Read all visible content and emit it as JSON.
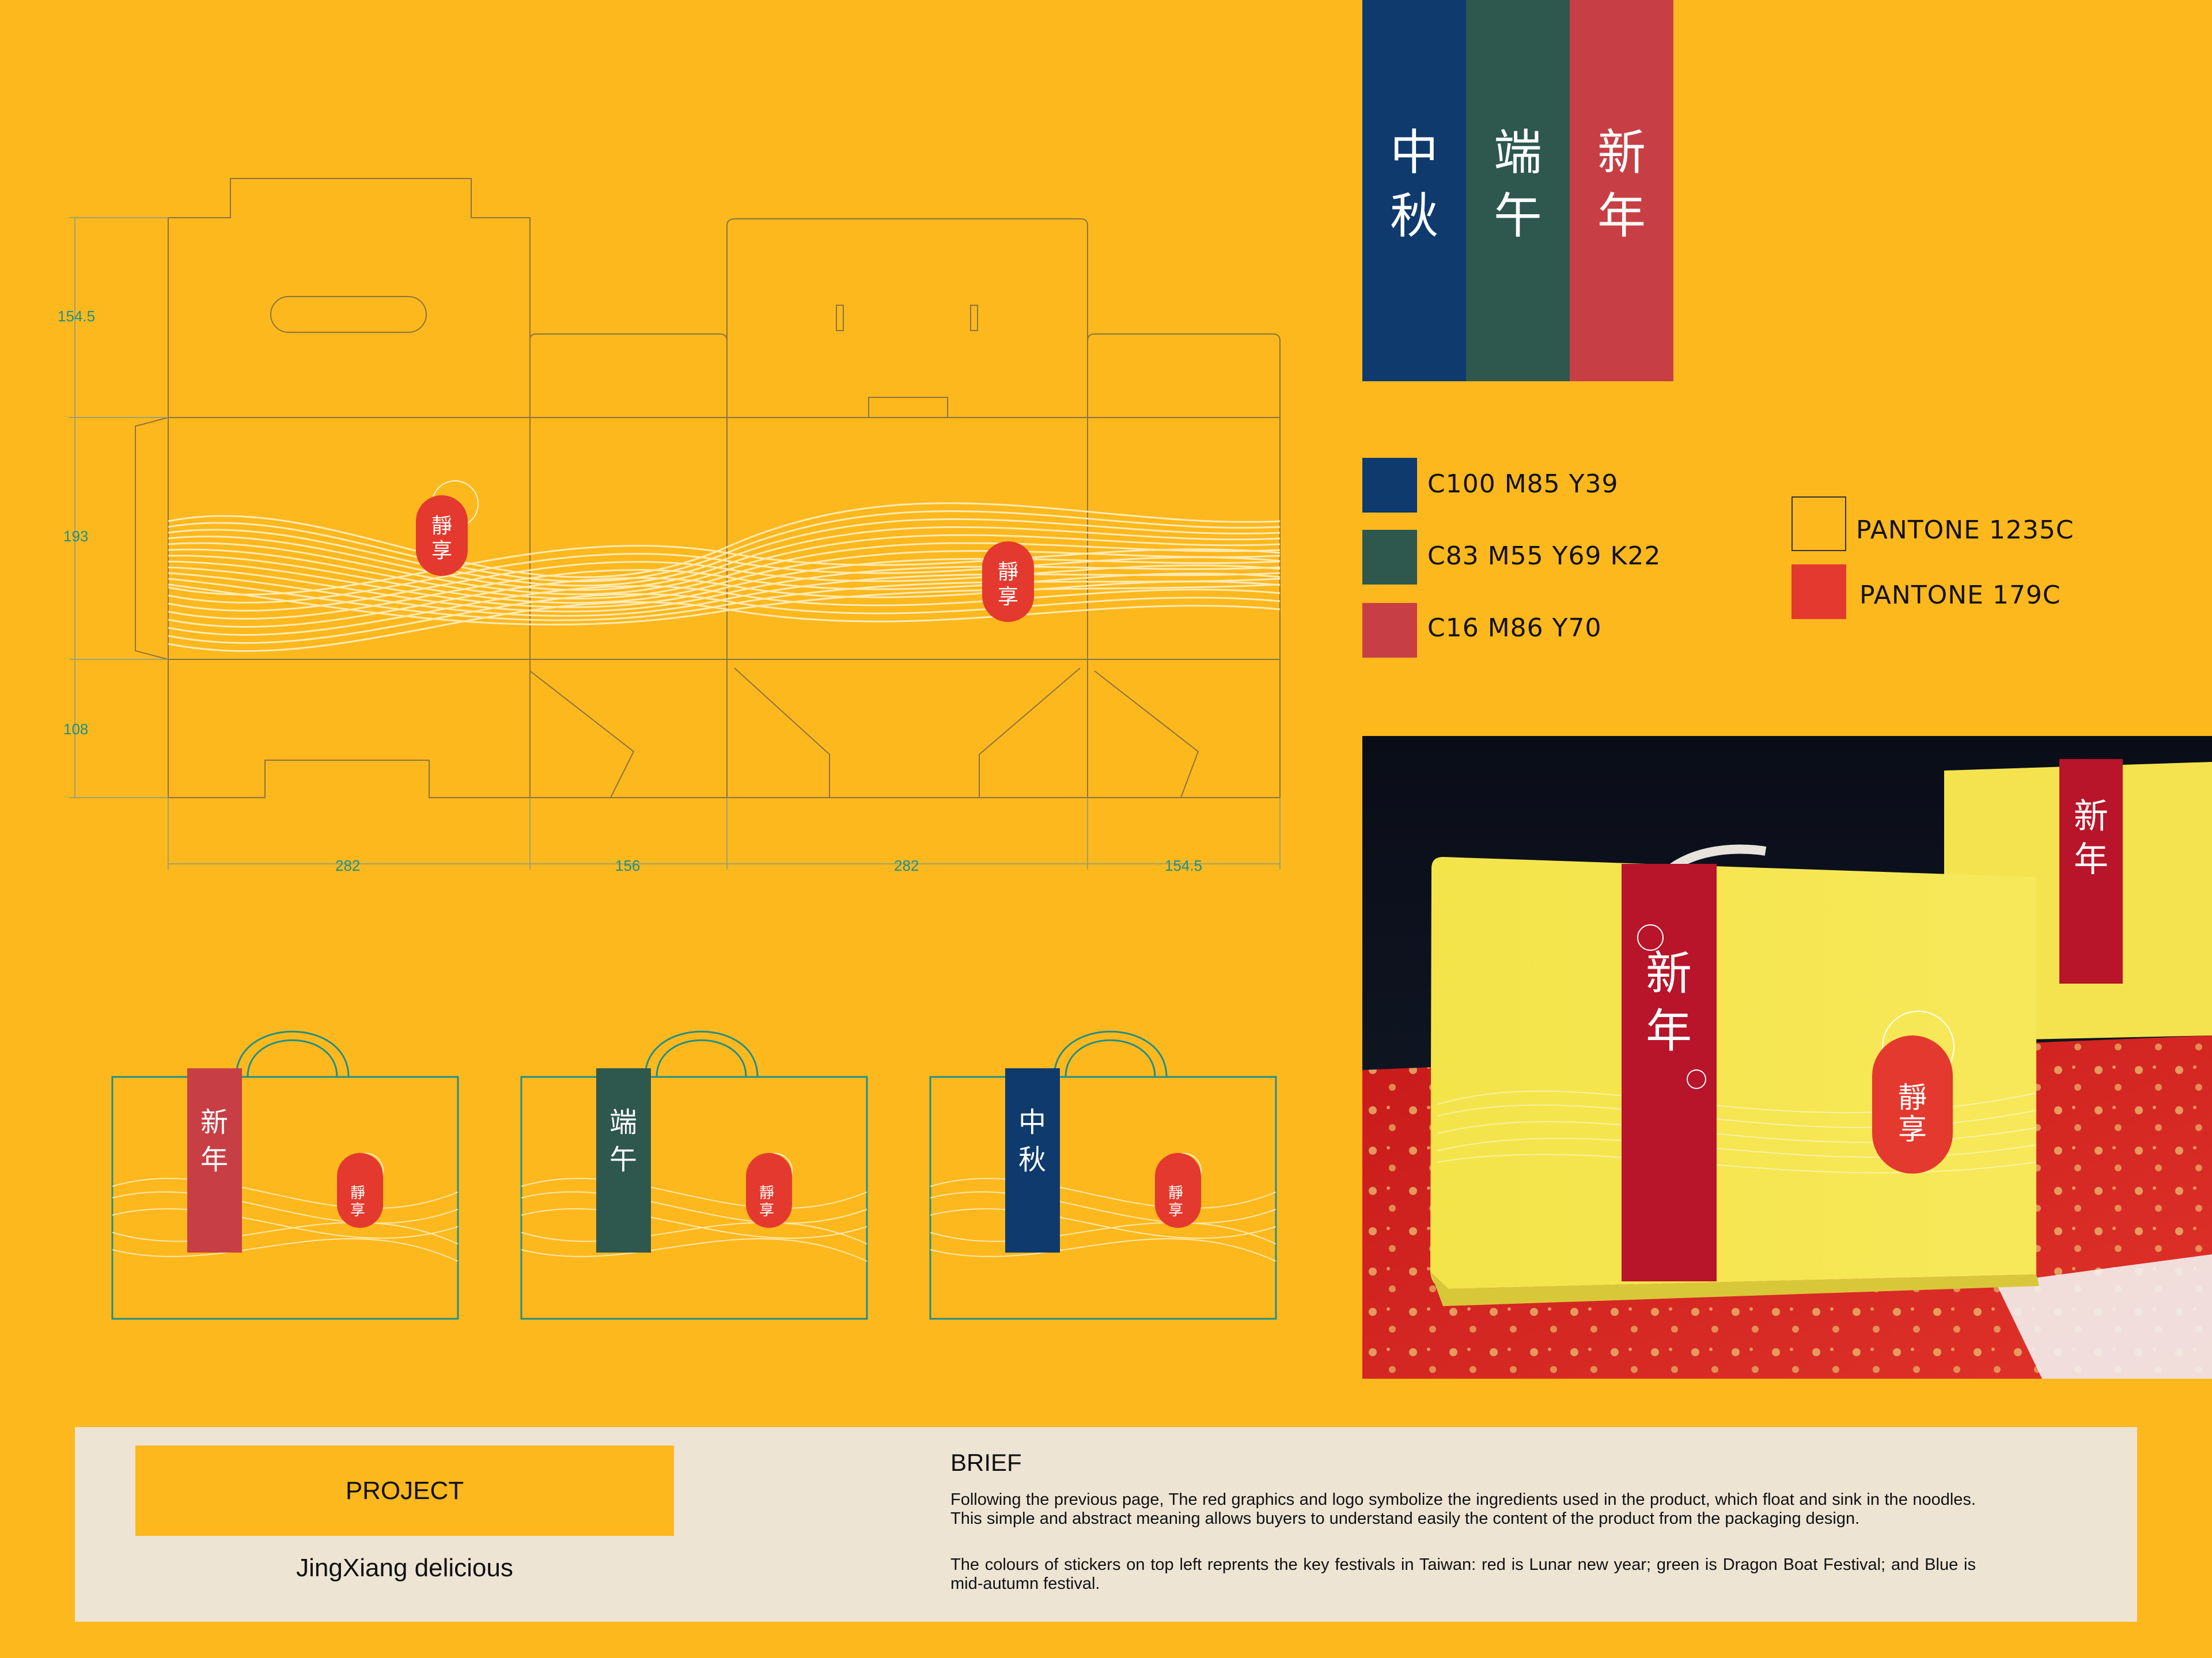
{
  "festival_banners": [
    {
      "chars": [
        "中",
        "秋"
      ],
      "color": "#0E3A6E"
    },
    {
      "chars": [
        "端",
        "午"
      ],
      "color": "#2E574E"
    },
    {
      "chars": [
        "新",
        "年"
      ],
      "color": "#C73F45"
    }
  ],
  "cmyk_swatches": [
    {
      "label": "C100 M85 Y39",
      "color": "#0E3A6E"
    },
    {
      "label": "C83 M55 Y69 K22",
      "color": "#2E574E"
    },
    {
      "label": "C16 M86 Y70",
      "color": "#C73F45"
    }
  ],
  "pantone_swatches": [
    {
      "label": "PANTONE 1235C",
      "color": "#FDB81E"
    },
    {
      "label": "PANTONE 179C",
      "color": "#E4392E"
    }
  ],
  "dieline": {
    "dim_left": [
      "154.5",
      "193",
      "108"
    ],
    "dim_bottom": [
      "282",
      "156",
      "282",
      "154.5"
    ]
  },
  "logo_text": [
    "靜",
    "享"
  ],
  "mockups": [
    {
      "chars": [
        "新",
        "年"
      ],
      "color": "#C73F45"
    },
    {
      "chars": [
        "端",
        "午"
      ],
      "color": "#2E574E"
    },
    {
      "chars": [
        "中",
        "秋"
      ],
      "color": "#0E3A6E"
    }
  ],
  "photo": {
    "sticker_chars": [
      "新",
      "年"
    ]
  },
  "project": {
    "label": "PROJECT",
    "name": "JingXiang  delicious"
  },
  "brief": {
    "title": "BRIEF",
    "p1": "Following the previous page, The red graphics and logo symbolize the ingredients used in the product, which float and sink in the noodles. This simple and abstract meaning allows buyers to understand easily the content of the product from the packaging design.",
    "p2": "The colours of stickers on top left reprents the key festivals in Taiwan: red is Lunar new year; green is Dragon Boat Festival; and Blue is mid-autumn festival."
  },
  "colors": {
    "background": "#FDB81E",
    "panel": "#EDE4D4",
    "logo_red": "#E4392E"
  }
}
